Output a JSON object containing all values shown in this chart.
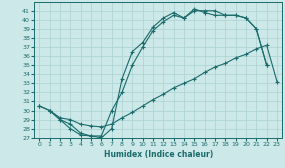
{
  "xlabel": "Humidex (Indice chaleur)",
  "bg_color": "#cde8e8",
  "grid_color": "#b0d4d4",
  "line_color": "#1a6b6b",
  "xlim": [
    -0.5,
    23.5
  ],
  "ylim": [
    27,
    42
  ],
  "xticks": [
    0,
    1,
    2,
    3,
    4,
    5,
    6,
    7,
    8,
    9,
    10,
    11,
    12,
    13,
    14,
    15,
    16,
    17,
    18,
    19,
    20,
    21,
    22,
    23
  ],
  "yticks": [
    27,
    28,
    29,
    30,
    31,
    32,
    33,
    34,
    35,
    36,
    37,
    38,
    39,
    40,
    41
  ],
  "c1x": [
    0,
    1,
    2,
    3,
    4,
    5,
    6,
    7,
    8,
    9,
    10,
    11,
    12,
    13,
    14,
    15,
    16,
    17,
    18,
    19,
    20,
    21,
    22
  ],
  "c1y": [
    30.5,
    30.0,
    29.0,
    28.0,
    27.3,
    27.2,
    27.0,
    28.0,
    33.5,
    36.5,
    37.5,
    39.2,
    40.2,
    40.8,
    40.2,
    41.2,
    40.8,
    40.5,
    40.5,
    40.5,
    40.2,
    39.0,
    35.0
  ],
  "c2x": [
    0,
    1,
    2,
    3,
    4,
    5,
    6,
    7,
    8,
    9,
    10,
    11,
    12,
    13,
    14,
    15,
    16,
    17,
    18,
    19,
    20,
    21,
    22
  ],
  "c2y": [
    30.5,
    30.0,
    29.0,
    28.5,
    27.5,
    27.2,
    27.2,
    30.0,
    32.0,
    35.0,
    37.0,
    38.8,
    39.8,
    40.5,
    40.2,
    41.0,
    41.0,
    41.0,
    40.5,
    40.5,
    40.2,
    39.0,
    35.0
  ],
  "c3x": [
    1,
    2,
    3,
    4,
    5,
    6,
    7,
    8,
    9,
    10,
    11,
    12,
    13,
    14,
    15,
    16,
    17,
    18,
    19,
    20,
    21,
    22,
    23
  ],
  "c3y": [
    30.0,
    29.2,
    29.0,
    28.5,
    28.3,
    28.2,
    28.5,
    29.2,
    29.8,
    30.5,
    31.2,
    31.8,
    32.5,
    33.0,
    33.5,
    34.2,
    34.8,
    35.2,
    35.8,
    36.2,
    36.8,
    37.2,
    33.2
  ]
}
